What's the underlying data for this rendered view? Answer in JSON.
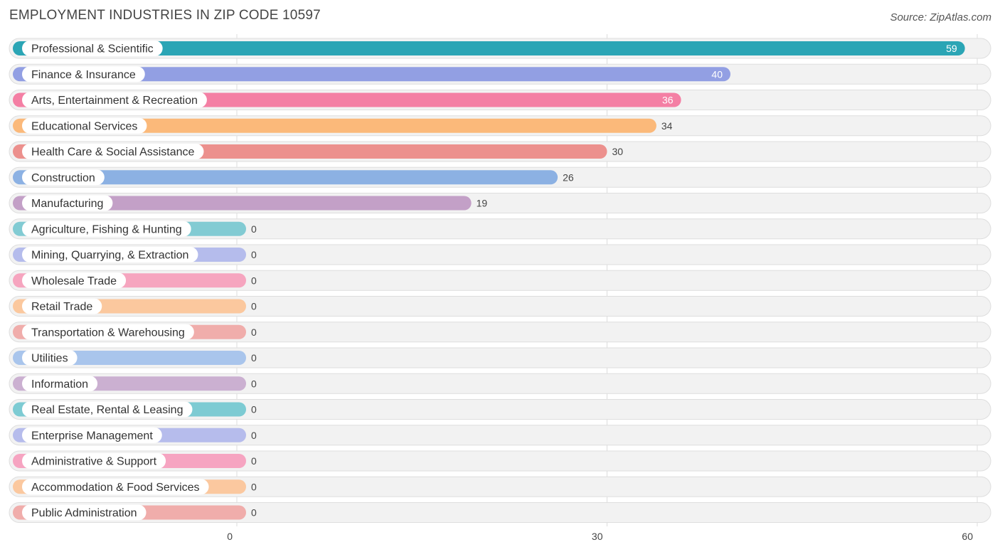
{
  "chart_data": {
    "type": "bar",
    "orientation": "horizontal",
    "title": "EMPLOYMENT INDUSTRIES IN ZIP CODE 10597",
    "source": "Source: ZipAtlas.com",
    "xlim": [
      0,
      60
    ],
    "xticks": [
      0,
      30,
      60
    ],
    "grid": true,
    "categories": [
      "Professional & Scientific",
      "Finance & Insurance",
      "Arts, Entertainment & Recreation",
      "Educational Services",
      "Health Care & Social Assistance",
      "Construction",
      "Manufacturing",
      "Agriculture, Fishing & Hunting",
      "Mining, Quarrying, & Extraction",
      "Wholesale Trade",
      "Retail Trade",
      "Transportation & Warehousing",
      "Utilities",
      "Information",
      "Real Estate, Rental & Leasing",
      "Enterprise Management",
      "Administrative & Support",
      "Accommodation & Food Services",
      "Public Administration"
    ],
    "values": [
      59,
      40,
      36,
      34,
      30,
      26,
      19,
      0,
      0,
      0,
      0,
      0,
      0,
      0,
      0,
      0,
      0,
      0,
      0
    ],
    "colors": [
      "#2ba5b5",
      "#929fe3",
      "#f47fa4",
      "#fbb97a",
      "#ec908d",
      "#8cb1e3",
      "#c3a0c7",
      "#82cbd3",
      "#b5bcec",
      "#f6a5bf",
      "#fbc89e",
      "#f0adab",
      "#a9c5ec",
      "#cbb0d1",
      "#7dcbd3",
      "#b6bcec",
      "#f6a4c1",
      "#fbc89f",
      "#f0adab"
    ]
  }
}
